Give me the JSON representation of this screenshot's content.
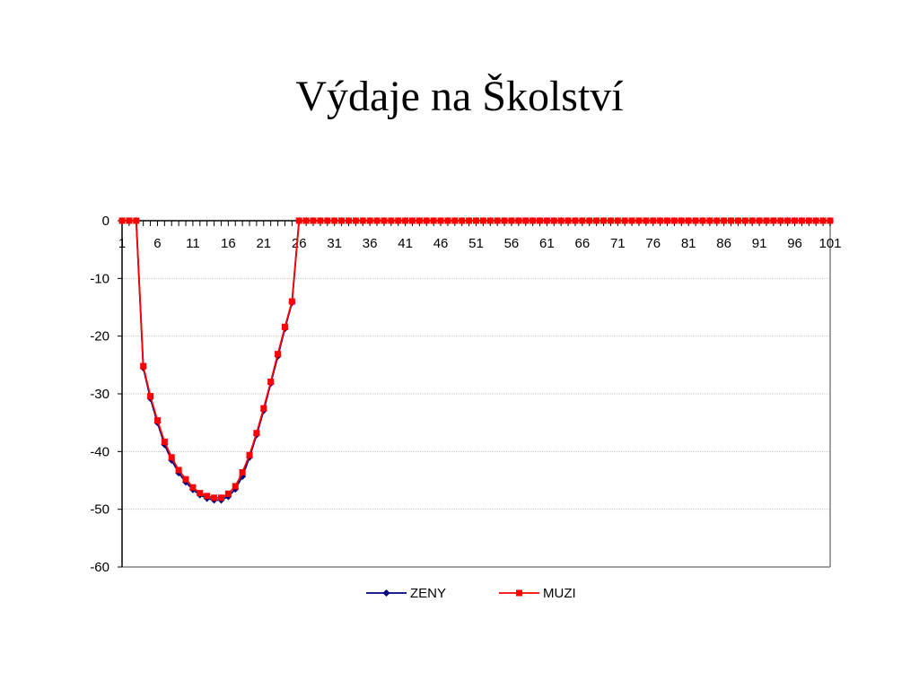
{
  "slide": {
    "title": "Výdaje na Školství"
  },
  "chart_data": {
    "type": "line",
    "title": "",
    "xlabel": "",
    "ylabel": "",
    "ylim": [
      -60,
      0
    ],
    "y_ticks": [
      "0",
      "-10",
      "-20",
      "-30",
      "-40",
      "-50",
      "-60"
    ],
    "x_tick_labels": [
      "1",
      "6",
      "11",
      "16",
      "21",
      "26",
      "31",
      "36",
      "41",
      "46",
      "51",
      "56",
      "61",
      "66",
      "71",
      "76",
      "81",
      "86",
      "91",
      "96",
      "101"
    ],
    "x": [
      1,
      2,
      3,
      4,
      5,
      6,
      7,
      8,
      9,
      10,
      11,
      12,
      13,
      14,
      15,
      16,
      17,
      18,
      19,
      20,
      21,
      22,
      23,
      24,
      25,
      26,
      27,
      28,
      29,
      30,
      31,
      32,
      33,
      34,
      35,
      36,
      37,
      38,
      39,
      40,
      41,
      42,
      43,
      44,
      45,
      46,
      47,
      48,
      49,
      50,
      51,
      52,
      53,
      54,
      55,
      56,
      57,
      58,
      59,
      60,
      61,
      62,
      63,
      64,
      65,
      66,
      67,
      68,
      69,
      70,
      71,
      72,
      73,
      74,
      75,
      76,
      77,
      78,
      79,
      80,
      81,
      82,
      83,
      84,
      85,
      86,
      87,
      88,
      89,
      90,
      91,
      92,
      93,
      94,
      95,
      96,
      97,
      98,
      99,
      100,
      101
    ],
    "gridlines": "horizontal",
    "legend_position": "bottom",
    "series": [
      {
        "name": "ZENY",
        "color": "#000080",
        "marker": "diamond",
        "values": [
          0,
          0,
          0,
          -25.5,
          -30.8,
          -35,
          -38.8,
          -41.5,
          -43.7,
          -45.3,
          -46.6,
          -47.5,
          -48.1,
          -48.4,
          -48.4,
          -47.8,
          -46.5,
          -44.3,
          -41,
          -37.1,
          -32.9,
          -28.2,
          -23.5,
          -18.7,
          -14.2,
          0,
          0,
          0,
          0,
          0,
          0,
          0,
          0,
          0,
          0,
          0,
          0,
          0,
          0,
          0,
          0,
          0,
          0,
          0,
          0,
          0,
          0,
          0,
          0,
          0,
          0,
          0,
          0,
          0,
          0,
          0,
          0,
          0,
          0,
          0,
          0,
          0,
          0,
          0,
          0,
          0,
          0,
          0,
          0,
          0,
          0,
          0,
          0,
          0,
          0,
          0,
          0,
          0,
          0,
          0,
          0,
          0,
          0,
          0,
          0,
          0,
          0,
          0,
          0,
          0,
          0,
          0,
          0,
          0,
          0,
          0,
          0,
          0,
          0,
          0,
          0
        ]
      },
      {
        "name": "MUZI",
        "color": "#ff0000",
        "marker": "square",
        "values": [
          0,
          0,
          0,
          -25.2,
          -30.4,
          -34.6,
          -38.3,
          -41,
          -43.2,
          -44.8,
          -46.2,
          -47.2,
          -47.7,
          -48,
          -48,
          -47.3,
          -46,
          -43.6,
          -40.6,
          -36.8,
          -32.5,
          -27.9,
          -23.1,
          -18.4,
          -14,
          0,
          0,
          0,
          0,
          0,
          0,
          0,
          0,
          0,
          0,
          0,
          0,
          0,
          0,
          0,
          0,
          0,
          0,
          0,
          0,
          0,
          0,
          0,
          0,
          0,
          0,
          0,
          0,
          0,
          0,
          0,
          0,
          0,
          0,
          0,
          0,
          0,
          0,
          0,
          0,
          0,
          0,
          0,
          0,
          0,
          0,
          0,
          0,
          0,
          0,
          0,
          0,
          0,
          0,
          0,
          0,
          0,
          0,
          0,
          0,
          0,
          0,
          0,
          0,
          0,
          0,
          0,
          0,
          0,
          0,
          0,
          0,
          0,
          0,
          0,
          0
        ]
      }
    ]
  }
}
